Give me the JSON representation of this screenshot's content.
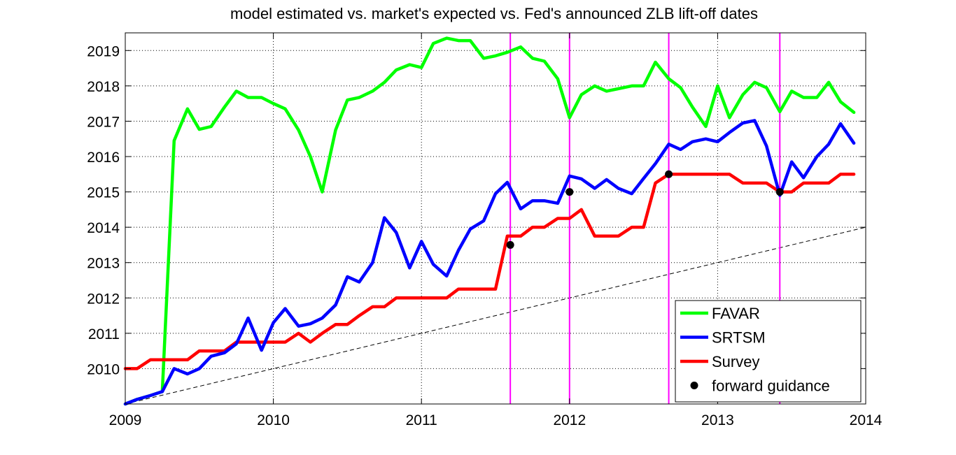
{
  "chart_data": {
    "type": "line",
    "title": "model estimated vs. market's expected vs. Fed's announced ZLB lift-off dates",
    "xlabel": "",
    "ylabel": "",
    "xlim": [
      2009,
      2014
    ],
    "ylim": [
      2009,
      2019.5
    ],
    "xticks": [
      "2009",
      "2010",
      "2011",
      "2012",
      "2013",
      "2014"
    ],
    "yticks": [
      "2010",
      "2011",
      "2012",
      "2013",
      "2014",
      "2015",
      "2016",
      "2017",
      "2018",
      "2019"
    ],
    "grid": true,
    "legend_position": "bottom-right",
    "series": [
      {
        "name": "FAVAR",
        "color": "#00ff00",
        "x": [
          2009.0,
          2009.08,
          2009.17,
          2009.25,
          2009.33,
          2009.42,
          2009.5,
          2009.58,
          2009.67,
          2009.75,
          2009.83,
          2009.92,
          2010.0,
          2010.08,
          2010.17,
          2010.25,
          2010.33,
          2010.42,
          2010.5,
          2010.58,
          2010.67,
          2010.75,
          2010.83,
          2010.92,
          2011.0,
          2011.08,
          2011.17,
          2011.25,
          2011.33,
          2011.42,
          2011.5,
          2011.58,
          2011.67,
          2011.75,
          2011.83,
          2011.92,
          2012.0,
          2012.08,
          2012.17,
          2012.25,
          2012.33,
          2012.42,
          2012.5,
          2012.58,
          2012.67,
          2012.75,
          2012.83,
          2012.92,
          2013.0,
          2013.08,
          2013.17,
          2013.25,
          2013.33,
          2013.42,
          2013.5,
          2013.58,
          2013.67,
          2013.75,
          2013.83,
          2013.92
        ],
        "y": [
          2009.0,
          2009.13,
          2009.24,
          2009.35,
          2016.45,
          2017.35,
          2016.77,
          2016.85,
          2017.4,
          2017.85,
          2017.67,
          2017.67,
          2017.5,
          2017.35,
          2016.75,
          2016.0,
          2015.0,
          2016.75,
          2017.6,
          2017.67,
          2017.85,
          2018.1,
          2018.45,
          2018.6,
          2018.52,
          2019.2,
          2019.35,
          2019.28,
          2019.28,
          2018.78,
          2018.85,
          2018.95,
          2019.1,
          2018.78,
          2018.7,
          2018.2,
          2017.1,
          2017.75,
          2018.0,
          2017.85,
          2017.92,
          2018.0,
          2018.0,
          2018.67,
          2018.2,
          2017.95,
          2017.4,
          2016.85,
          2018.0,
          2017.1,
          2017.75,
          2018.1,
          2017.95,
          2017.27,
          2017.85,
          2017.67,
          2017.67,
          2018.1,
          2017.55,
          2017.25
        ]
      },
      {
        "name": "SRTSM",
        "color": "#0000ff",
        "x": [
          2009.0,
          2009.08,
          2009.17,
          2009.25,
          2009.33,
          2009.42,
          2009.5,
          2009.58,
          2009.67,
          2009.75,
          2009.83,
          2009.92,
          2010.0,
          2010.08,
          2010.17,
          2010.25,
          2010.33,
          2010.42,
          2010.5,
          2010.58,
          2010.67,
          2010.75,
          2010.83,
          2010.92,
          2011.0,
          2011.08,
          2011.17,
          2011.25,
          2011.33,
          2011.42,
          2011.5,
          2011.58,
          2011.67,
          2011.75,
          2011.83,
          2011.92,
          2012.0,
          2012.08,
          2012.17,
          2012.25,
          2012.33,
          2012.42,
          2012.5,
          2012.58,
          2012.67,
          2012.75,
          2012.83,
          2012.92,
          2013.0,
          2013.08,
          2013.17,
          2013.25,
          2013.33,
          2013.42,
          2013.5,
          2013.58,
          2013.67,
          2013.75,
          2013.83,
          2013.92
        ],
        "y": [
          2009.0,
          2009.13,
          2009.24,
          2009.35,
          2010.0,
          2009.85,
          2010.0,
          2010.35,
          2010.45,
          2010.7,
          2011.43,
          2010.52,
          2011.3,
          2011.7,
          2011.2,
          2011.27,
          2011.43,
          2011.8,
          2012.6,
          2012.45,
          2013.0,
          2014.27,
          2013.85,
          2012.85,
          2013.6,
          2012.95,
          2012.62,
          2013.35,
          2013.95,
          2014.18,
          2014.95,
          2015.27,
          2014.52,
          2014.75,
          2014.75,
          2014.68,
          2015.45,
          2015.37,
          2015.1,
          2015.35,
          2015.1,
          2014.95,
          2015.38,
          2015.8,
          2016.35,
          2016.2,
          2016.42,
          2016.5,
          2016.42,
          2016.68,
          2016.95,
          2017.02,
          2016.3,
          2014.9,
          2015.85,
          2015.4,
          2016.0,
          2016.35,
          2016.93,
          2016.38
        ]
      },
      {
        "name": "Survey",
        "color": "#ff0000",
        "x": [
          2009.0,
          2009.08,
          2009.17,
          2009.25,
          2009.33,
          2009.42,
          2009.5,
          2009.58,
          2009.67,
          2009.75,
          2009.83,
          2009.92,
          2010.0,
          2010.08,
          2010.17,
          2010.25,
          2010.33,
          2010.42,
          2010.5,
          2010.58,
          2010.67,
          2010.75,
          2010.83,
          2010.92,
          2011.0,
          2011.08,
          2011.17,
          2011.25,
          2011.33,
          2011.42,
          2011.5,
          2011.58,
          2011.67,
          2011.75,
          2011.83,
          2011.92,
          2012.0,
          2012.08,
          2012.17,
          2012.25,
          2012.33,
          2012.42,
          2012.5,
          2012.58,
          2012.67,
          2012.75,
          2012.83,
          2012.92,
          2013.0,
          2013.08,
          2013.17,
          2013.25,
          2013.33,
          2013.42,
          2013.5,
          2013.58,
          2013.67,
          2013.75,
          2013.83,
          2013.92
        ],
        "y": [
          2010.0,
          2010.0,
          2010.25,
          2010.25,
          2010.25,
          2010.25,
          2010.5,
          2010.5,
          2010.5,
          2010.75,
          2010.75,
          2010.75,
          2010.75,
          2010.75,
          2011.0,
          2010.75,
          2011.0,
          2011.25,
          2011.25,
          2011.5,
          2011.75,
          2011.75,
          2012.0,
          2012.0,
          2012.0,
          2012.0,
          2012.0,
          2012.25,
          2012.25,
          2012.25,
          2012.25,
          2013.75,
          2013.75,
          2014.0,
          2014.0,
          2014.25,
          2014.25,
          2014.5,
          2013.75,
          2013.75,
          2013.75,
          2014.0,
          2014.0,
          2015.25,
          2015.5,
          2015.5,
          2015.5,
          2015.5,
          2015.5,
          2015.5,
          2015.25,
          2015.25,
          2015.25,
          2015.0,
          2015.0,
          2015.25,
          2015.25,
          2015.25,
          2015.5,
          2015.5
        ]
      },
      {
        "name": "forward guidance",
        "color": "#000000",
        "marker": "dot",
        "x": [
          2011.6,
          2012.0,
          2012.67,
          2013.42
        ],
        "y": [
          2013.5,
          2015.0,
          2015.5,
          2015.0
        ]
      }
    ],
    "reference_line": {
      "color": "#000000",
      "style": "dashed",
      "x": [
        2009,
        2014
      ],
      "y": [
        2009,
        2014
      ]
    },
    "vertical_lines": {
      "color": "#ff00ff",
      "x": [
        2011.6,
        2012.0,
        2012.67,
        2013.42
      ]
    }
  }
}
